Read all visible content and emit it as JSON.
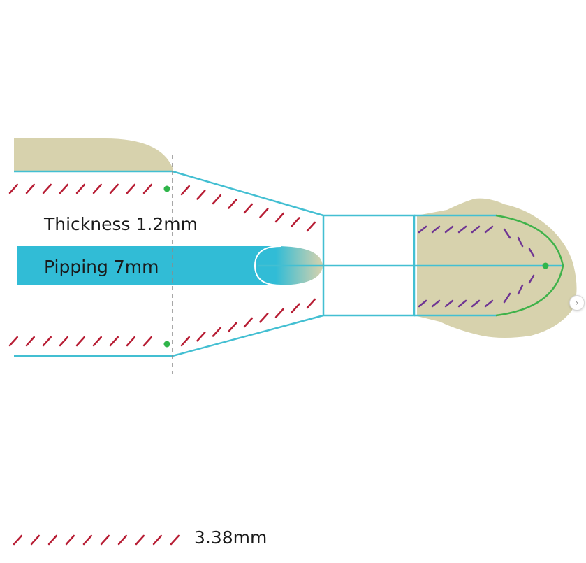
{
  "labels": {
    "thickness": "Thickness 1.2mm",
    "pipping": "Pipping 7mm",
    "legend": "3.38mm"
  },
  "nav": {
    "next_glyph": "›"
  },
  "icons": {
    "next": "chevron-right-icon"
  },
  "colors": {
    "outline": "#43bfd2",
    "pipping": "#31bcd6",
    "tan": "#d7d2ad",
    "stitch_red": "#b71d34",
    "stitch_purple": "#6f3593",
    "curve_green": "#3fb24a",
    "dot_green": "#2fb54a",
    "guide": "#8c8c8c"
  }
}
